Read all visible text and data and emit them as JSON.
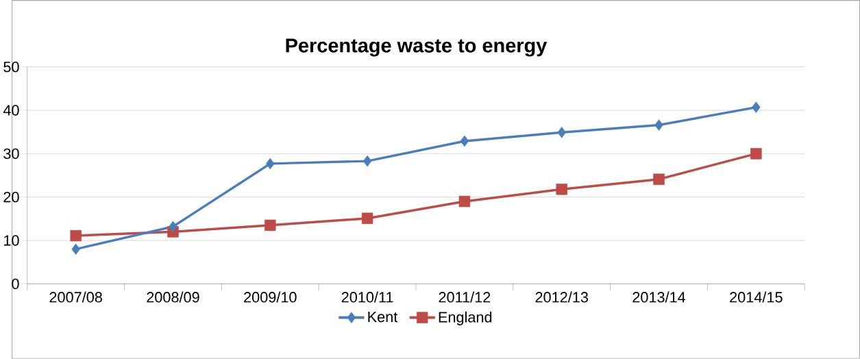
{
  "chart_data": {
    "type": "line",
    "title": "Percentage waste to energy",
    "categories": [
      "2007/08",
      "2008/09",
      "2009/10",
      "2010/11",
      "2011/12",
      "2012/13",
      "2013/14",
      "2014/15"
    ],
    "series": [
      {
        "name": "Kent",
        "color": "#4a7ebb",
        "marker": "diamond",
        "values": [
          8,
          13.2,
          27.7,
          28.3,
          32.9,
          34.9,
          36.6,
          40.7
        ]
      },
      {
        "name": "England",
        "color": "#be4b48",
        "marker": "square",
        "values": [
          11.1,
          12,
          13.5,
          15.1,
          19,
          21.8,
          24.1,
          30
        ]
      }
    ],
    "ylim": [
      0,
      50
    ],
    "yticks": [
      0,
      10,
      20,
      30,
      40,
      50
    ],
    "grid": "y",
    "legend": "bottom",
    "line_style": "solid"
  }
}
